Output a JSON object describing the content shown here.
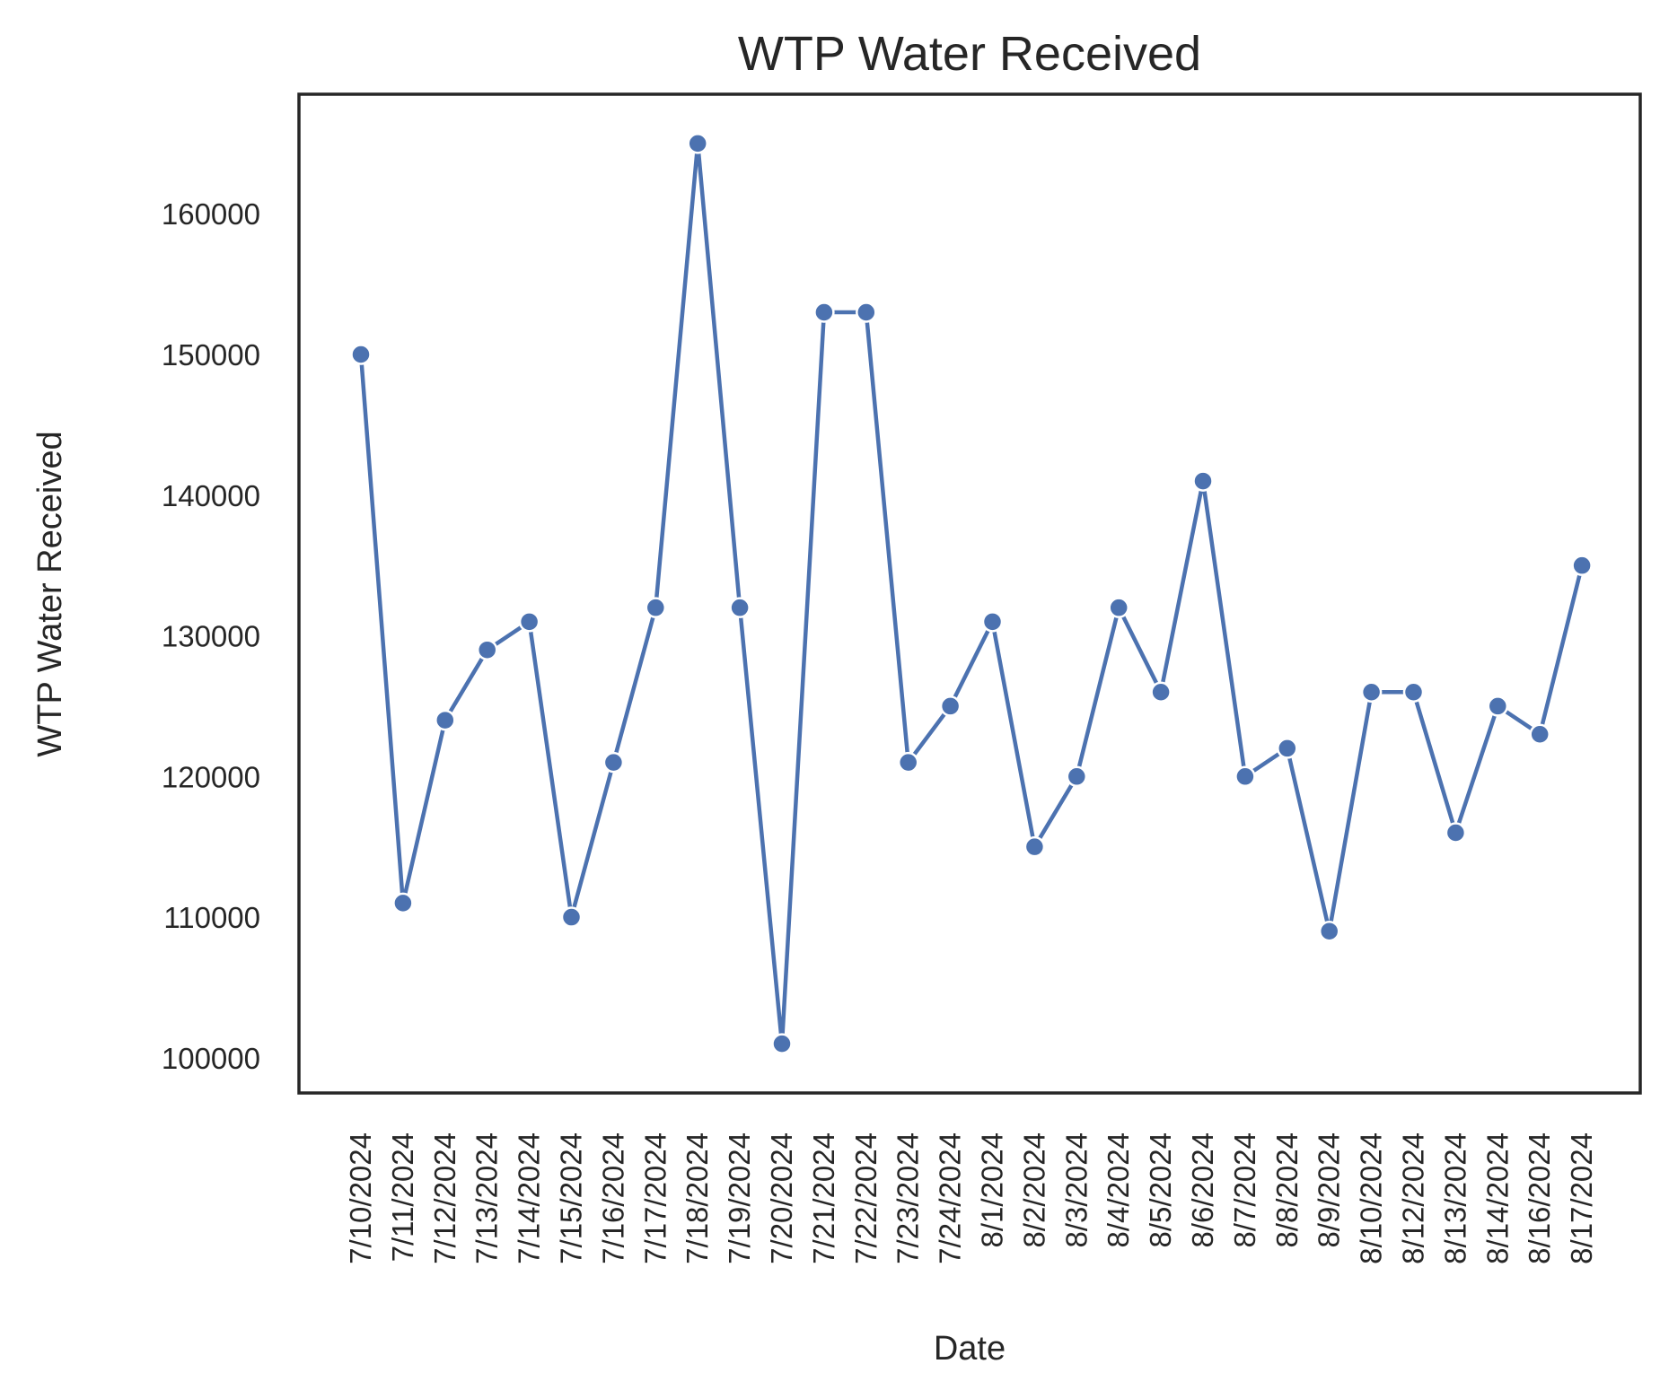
{
  "chart_data": {
    "type": "line",
    "title": "WTP Water Received",
    "xlabel": "Date",
    "ylabel": "WTP Water Received",
    "ylim": [
      97500,
      168500
    ],
    "yticks": [
      100000,
      110000,
      120000,
      130000,
      140000,
      150000,
      160000
    ],
    "grid": false,
    "legend": "none",
    "marker": "circle",
    "color": "#4c72b0",
    "categories": [
      "7/10/2024",
      "7/11/2024",
      "7/12/2024",
      "7/13/2024",
      "7/14/2024",
      "7/15/2024",
      "7/16/2024",
      "7/17/2024",
      "7/18/2024",
      "7/19/2024",
      "7/20/2024",
      "7/21/2024",
      "7/22/2024",
      "7/23/2024",
      "7/24/2024",
      "8/1/2024",
      "8/2/2024",
      "8/3/2024",
      "8/4/2024",
      "8/5/2024",
      "8/6/2024",
      "8/7/2024",
      "8/8/2024",
      "8/9/2024",
      "8/10/2024",
      "8/12/2024",
      "8/13/2024",
      "8/14/2024",
      "8/16/2024",
      "8/17/2024"
    ],
    "values": [
      150000,
      111000,
      124000,
      129000,
      131000,
      110000,
      121000,
      132000,
      165000,
      132000,
      101000,
      153000,
      153000,
      121000,
      125000,
      131000,
      115000,
      120000,
      132000,
      126000,
      141000,
      120000,
      122000,
      109000,
      126000,
      126000,
      116000,
      125000,
      123000,
      135000
    ]
  }
}
